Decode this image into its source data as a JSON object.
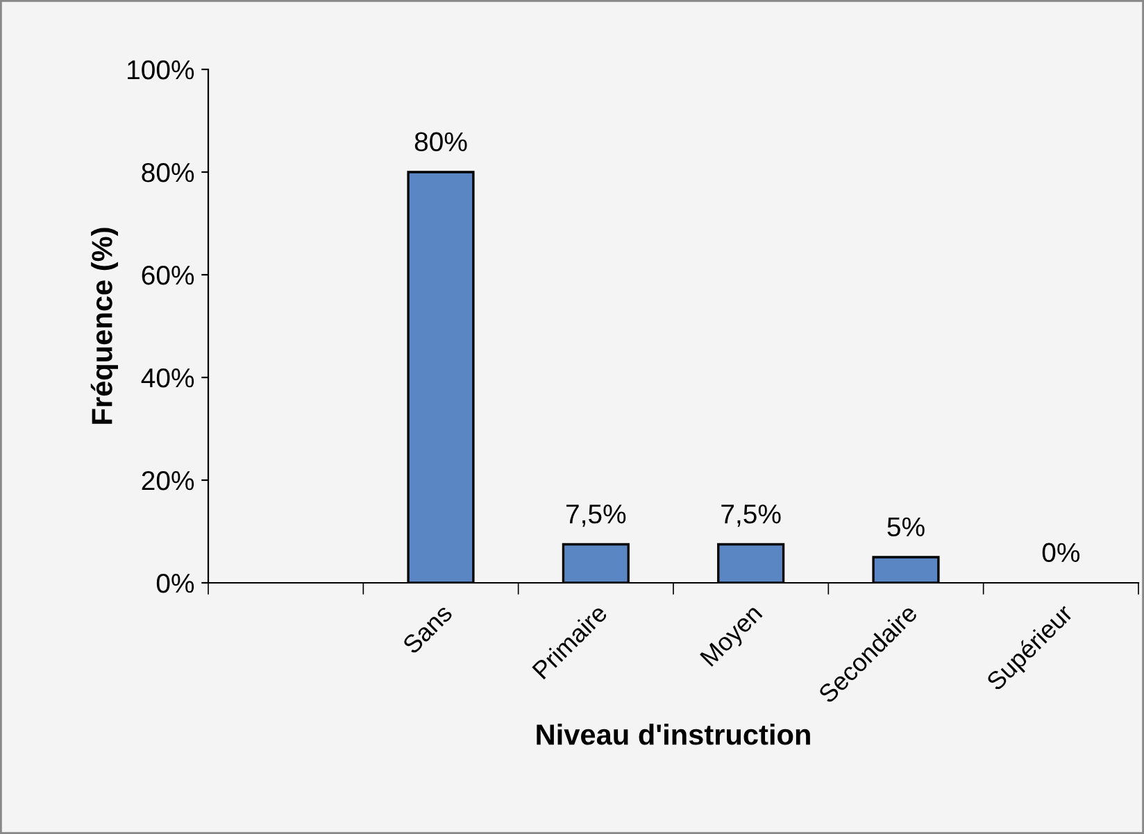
{
  "chart_data": {
    "type": "bar",
    "xlabel": "Niveau d'instruction",
    "ylabel": "Fréquence (%)",
    "categories": [
      null,
      "Sans",
      "Primaire",
      "Moyen",
      "Secondaire",
      "Supérieur"
    ],
    "values": [
      null,
      80,
      7.5,
      7.5,
      5,
      0
    ],
    "value_labels": [
      null,
      "80%",
      "7,5%",
      "7,5%",
      "5%",
      "0%"
    ],
    "color": "#5b86c4",
    "ylim": [
      0,
      100
    ],
    "yticks": [
      {
        "value": 0,
        "label": "0%"
      },
      {
        "value": 20,
        "label": "20%"
      },
      {
        "value": 40,
        "label": "40%"
      },
      {
        "value": 60,
        "label": "60%"
      },
      {
        "value": 80,
        "label": "80%"
      },
      {
        "value": 100,
        "label": "100%"
      }
    ],
    "grid": false,
    "legend": false
  }
}
